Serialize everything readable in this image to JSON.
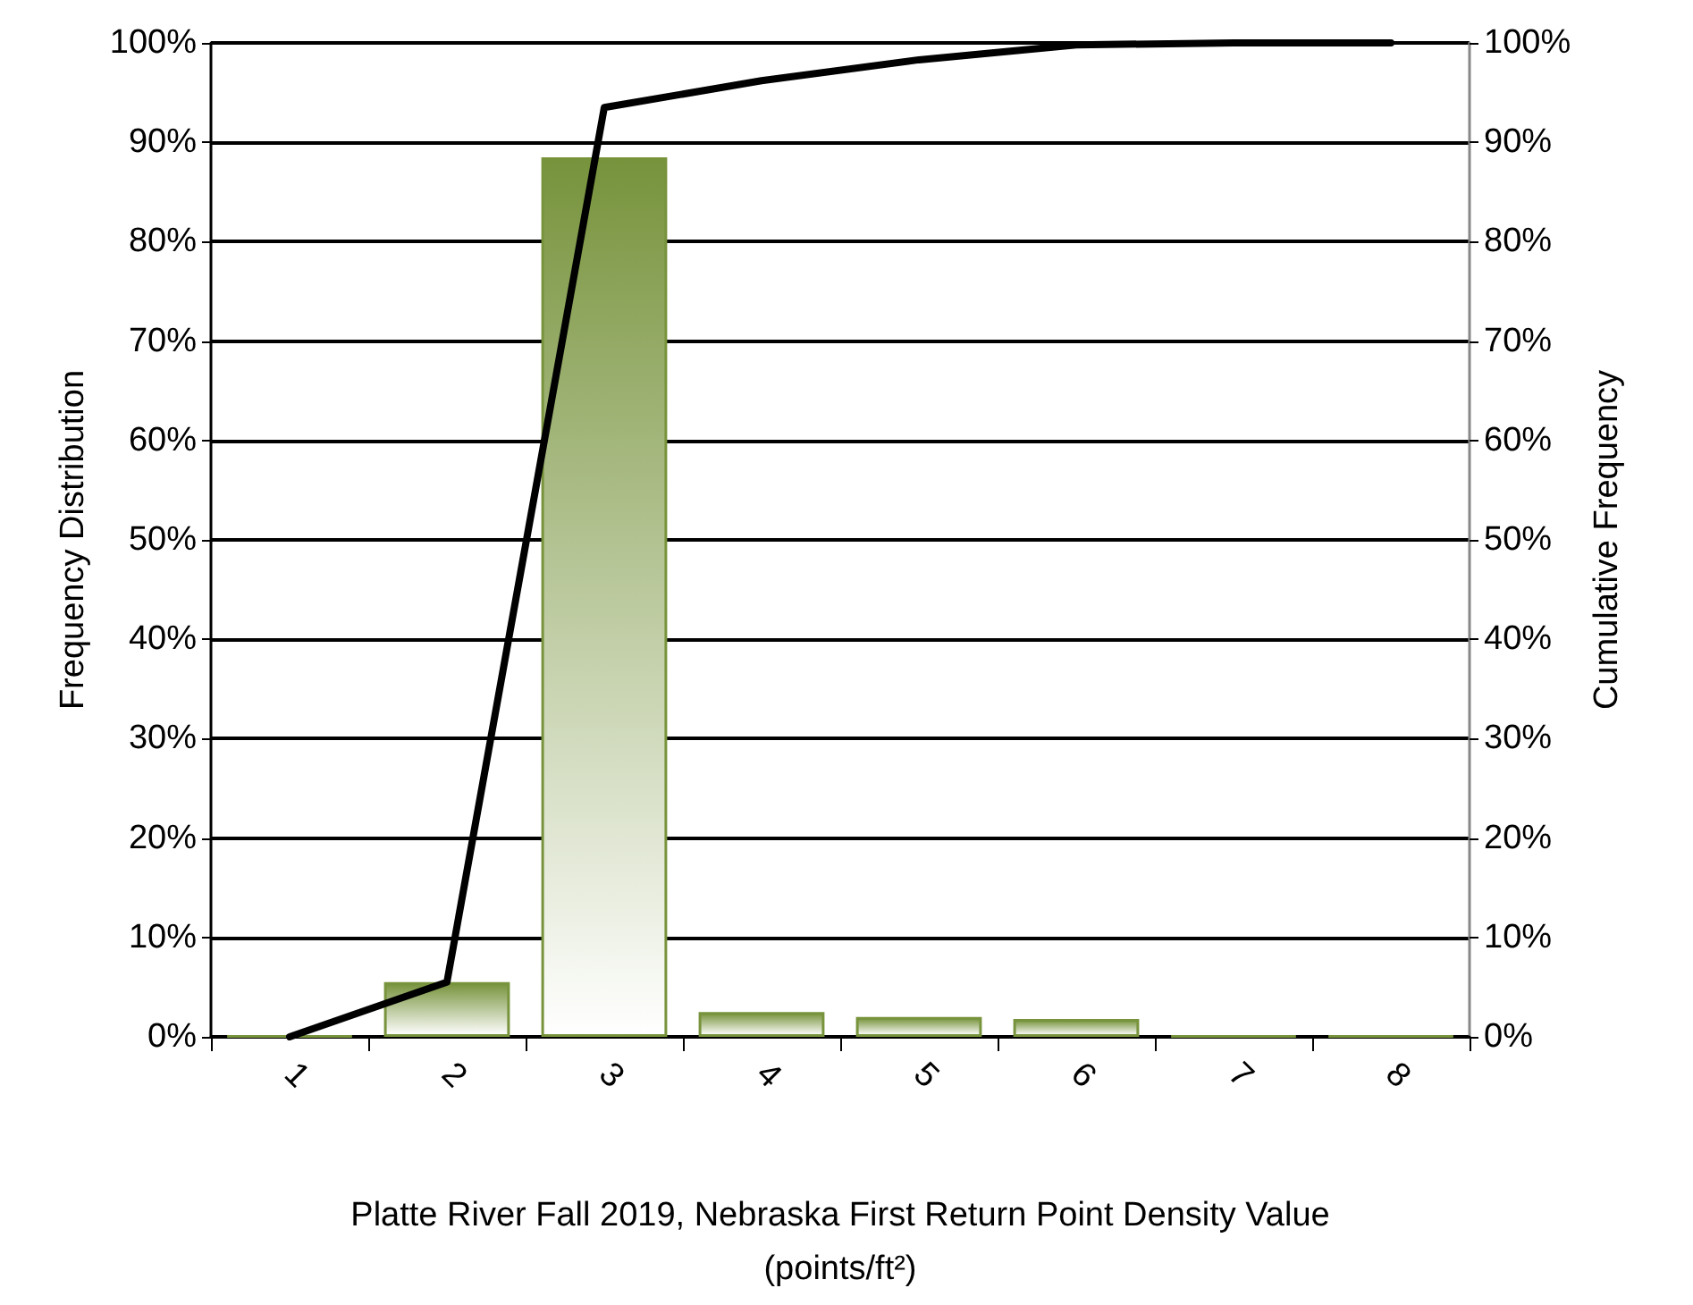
{
  "chart_data": {
    "type": "bar",
    "xlabel": "Platte River Fall 2019, Nebraska First Return Point Density Value\n(points/ft²)",
    "ylabel": "Frequency Distribution",
    "y2label": "Cumulative Frequency",
    "categories": [
      "1",
      "2",
      "3",
      "4",
      "5",
      "6",
      "7",
      "8"
    ],
    "series": [
      {
        "color": "#77933c",
        "values": [
          0.1,
          5.5,
          88.5,
          2.5,
          2.0,
          1.8,
          0.1,
          0.1
        ]
      },
      {
        "type": "line",
        "axis": "y2",
        "color": "#000000",
        "values": [
          0,
          5.5,
          93.5,
          96.2,
          98.3,
          99.8,
          100,
          100
        ]
      }
    ],
    "ylim": [
      0,
      100
    ],
    "yticks": [
      {
        "value": 0,
        "label": "0%"
      },
      {
        "value": 10,
        "label": "10%"
      },
      {
        "value": 20,
        "label": "20%"
      },
      {
        "value": 30,
        "label": "30%"
      },
      {
        "value": 40,
        "label": "40%"
      },
      {
        "value": 50,
        "label": "50%"
      },
      {
        "value": 60,
        "label": "60%"
      },
      {
        "value": 70,
        "label": "70%"
      },
      {
        "value": 80,
        "label": "80%"
      },
      {
        "value": 90,
        "label": "90%"
      },
      {
        "value": 100,
        "label": "100%"
      }
    ],
    "y2lim": [
      0,
      100
    ],
    "y2ticks": [
      {
        "value": 0,
        "label": "0%"
      },
      {
        "value": 10,
        "label": "10%"
      },
      {
        "value": 20,
        "label": "20%"
      },
      {
        "value": 30,
        "label": "30%"
      },
      {
        "value": 40,
        "label": "40%"
      },
      {
        "value": 50,
        "label": "50%"
      },
      {
        "value": 60,
        "label": "60%"
      },
      {
        "value": 70,
        "label": "70%"
      },
      {
        "value": 80,
        "label": "80%"
      },
      {
        "value": 90,
        "label": "90%"
      },
      {
        "value": 100,
        "label": "100%"
      }
    ],
    "grid": "y",
    "marker": "none",
    "line_style": "solid"
  }
}
